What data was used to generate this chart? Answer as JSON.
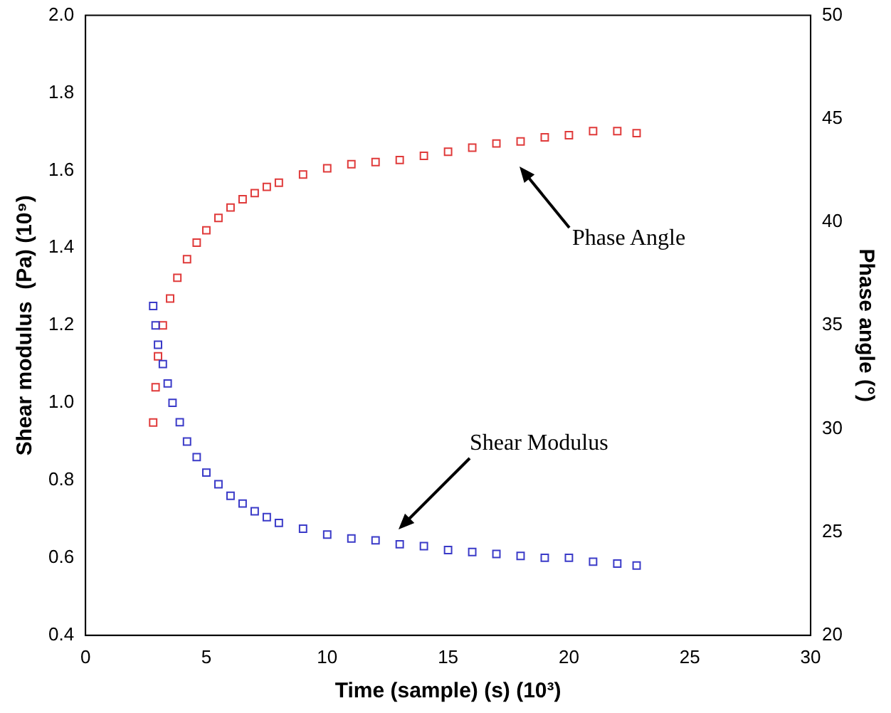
{
  "chart_data": {
    "type": "scatter",
    "xlabel": "Time (sample) (s) (10³)",
    "ylabel": "Shear modulus  (Pa) (10⁹)",
    "y2label": "Phase angle (°)",
    "xlim": [
      0,
      30
    ],
    "xticks": [
      0,
      5,
      10,
      15,
      20,
      25,
      30
    ],
    "ylim": [
      0.4,
      2.0
    ],
    "yticks": [
      {
        "value": 0.4,
        "label": "0.4"
      },
      {
        "value": 0.6,
        "label": "0.6"
      },
      {
        "value": 0.8,
        "label": "0.8"
      },
      {
        "value": 1,
        "label": "1.0"
      },
      {
        "value": 1.2,
        "label": "1.2"
      },
      {
        "value": 1.4,
        "label": "1.4"
      },
      {
        "value": 1.6,
        "label": "1.6"
      },
      {
        "value": 1.8,
        "label": "1.8"
      },
      {
        "value": 2,
        "label": "2.0"
      }
    ],
    "y2lim": [
      20,
      50
    ],
    "y2ticks": [
      20,
      25,
      30,
      35,
      40,
      45,
      50
    ],
    "grid": false,
    "legend": false,
    "marker": "square",
    "series": [
      {
        "color": "#3a3ac8",
        "x": [
          2.8,
          2.9,
          3.0,
          3.2,
          3.4,
          3.6,
          3.9,
          4.2,
          4.6,
          5.0,
          5.5,
          6.0,
          6.5,
          7.0,
          7.5,
          8.0,
          9.0,
          10.0,
          11.0,
          12.0,
          13.0,
          14.0,
          15.0,
          16.0,
          17.0,
          18.0,
          19.0,
          20.0,
          21.0,
          22.0,
          22.8
        ],
        "values": [
          1.25,
          1.2,
          1.15,
          1.1,
          1.05,
          1.0,
          0.95,
          0.9,
          0.86,
          0.82,
          0.79,
          0.76,
          0.74,
          0.72,
          0.705,
          0.69,
          0.675,
          0.66,
          0.65,
          0.645,
          0.635,
          0.63,
          0.62,
          0.615,
          0.61,
          0.605,
          0.6,
          0.6,
          0.59,
          0.585,
          0.58
        ]
      },
      {
        "color": "#e03a3a",
        "axis": "y2",
        "x": [
          2.8,
          2.9,
          3.0,
          3.2,
          3.5,
          3.8,
          4.2,
          4.6,
          5.0,
          5.5,
          6.0,
          6.5,
          7.0,
          7.5,
          8.0,
          9.0,
          10.0,
          11.0,
          12.0,
          13.0,
          14.0,
          15.0,
          16.0,
          17.0,
          18.0,
          19.0,
          20.0,
          21.0,
          22.0,
          22.8
        ],
        "values": [
          30.3,
          32.0,
          33.5,
          35.0,
          36.3,
          37.3,
          38.2,
          39.0,
          39.6,
          40.2,
          40.7,
          41.1,
          41.4,
          41.7,
          41.9,
          42.3,
          42.6,
          42.8,
          42.9,
          43.0,
          43.2,
          43.4,
          43.6,
          43.8,
          43.9,
          44.1,
          44.2,
          44.4,
          44.4,
          44.3
        ]
      }
    ],
    "annotations": [
      "Phase Angle",
      "Shear Modulus"
    ]
  }
}
